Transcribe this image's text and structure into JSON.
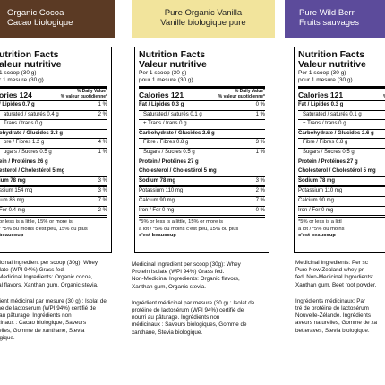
{
  "panels": [
    {
      "header": [
        "Organic Cocoa",
        "Cacao biologique"
      ],
      "facts": {
        "title": [
          "utrition Facts",
          "aleur nutritive"
        ],
        "serving": [
          "1 scoop (30 g)",
          "r 1 mesure (30 g)"
        ],
        "calories": "ories 124",
        "dv": [
          "% Daily Value*",
          "% valeur quotidienne*"
        ],
        "rows": [
          [
            "/ Lipides 0.7 g",
            "1 %"
          ],
          [
            "aturated / saturés 0.4 g",
            "2 %"
          ],
          [
            "Trans / trans 0 g"
          ],
          [
            "ohydrate / Glucides 3.3 g"
          ],
          [
            "bre / Fibres 1.2 g",
            "4 %"
          ],
          [
            "ugars / Sucres 0.5 g",
            "1 %"
          ],
          [
            "ein / Protéines 26 g"
          ],
          [
            "esterol / Cholestérol 5 mg"
          ],
          [
            "ium 78 mg",
            "3 %"
          ],
          [
            "ssium 154 mg",
            "3 %"
          ],
          [
            "ium 86 mg",
            "7 %"
          ],
          [
            "Fer 0.4 mg",
            "2 %"
          ]
        ],
        "footnote": [
          "or less is a little, 15% or more is",
          "/ *5% ou moins c'est peu, 15% ou plus",
          "beaucoup"
        ]
      },
      "ingredients": [
        [
          "dicinal Ingredient per scoop (30g): Whey",
          "olate (WPI 94%) Grass fed.",
          "-Medicinal Ingredients: Organic cocoa,",
          "ral flavors, Xanthan gum, Organic stevia."
        ],
        [
          "dient médicinal par mesure (30 g) : Isolat de",
          "ine de lactosérum (WPI 94%) certifié de",
          "i au pâturage. Ingrédients non",
          "icinaux : Cacao biologique, Saveurs",
          "relles, Gomme de xanthane, Stevia",
          "ogique."
        ]
      ]
    },
    {
      "header": [
        "Pure Organic Vanilla",
        "Vanille biologique pure"
      ],
      "facts": {
        "title": [
          "Nutrition Facts",
          "Valeur nutritive"
        ],
        "serving": [
          "Per 1 scoop (30 g)",
          "pour 1 mesure (30 g)"
        ],
        "calories": "Calories 121",
        "dv": [
          "% Daily Value*",
          "% valeur quotidienne*"
        ],
        "rows": [
          [
            "Fat / Lipides 0.3 g",
            "0 %"
          ],
          [
            "Saturated / saturés 0.1 g",
            "1 %"
          ],
          [
            "+ Trans / trans 0 g"
          ],
          [
            "Carbohydrate / Glucides 2.6 g"
          ],
          [
            "Fibre / Fibres 0.8 g",
            "3 %"
          ],
          [
            "Sugars / Sucres 0.5 g",
            "1 %"
          ],
          [
            "Protein / Protéines 27 g"
          ],
          [
            "Cholesterol / Cholestérol 5 mg"
          ],
          [
            "Sodium 78 mg",
            "3 %"
          ],
          [
            "Potassium 110 mg",
            "2 %"
          ],
          [
            "Calcium 90 mg",
            "7 %"
          ],
          [
            "Iron / Fer 0 mg",
            "0 %"
          ]
        ],
        "footnote": [
          "*5% or less is a little, 15% or more is",
          "a lot / *5% ou moins c'est peu, 15% ou plus",
          "c'est beaucoup"
        ]
      },
      "ingredients": [
        [
          "Medicinal Ingredient per scoop (30g): Whey",
          "Protein Isolate (WPI 94%) Grass fed.",
          "Non-Medicinal Ingredients: Organic flavors,",
          "Xanthan gum, Organic stevia."
        ],
        [
          "Ingrédient médicinal par mesure (30 g) : Isolat de",
          "protéine de lactosérum (WPI 94%) certifié de",
          "nourri au pâturage. Ingrédients non",
          "médicinaux : Saveurs biologiques, Gomme de",
          "xanthane, Stevia biologique."
        ]
      ]
    },
    {
      "header": [
        "Pure Wild Berr",
        "Fruits sauvages"
      ],
      "facts": {
        "title": [
          "Nutrition Facts",
          "Valeur nutritive"
        ],
        "serving": [
          "Per 1 scoop (30 g)",
          "pour 1 mesure (30 g)"
        ],
        "calories": "Calories 121",
        "dv": [
          "% Dai",
          "% valeur q"
        ],
        "rows": [
          [
            "Fat / Lipides 0.3 g"
          ],
          [
            "Saturated / saturés 0.1 g"
          ],
          [
            "+ Trans / trans 0 g"
          ],
          [
            "Carbohydrate / Glucides 2.6 g"
          ],
          [
            "Fibre / Fibres 0.8 g"
          ],
          [
            "Sugars / Sucres 0.5 g"
          ],
          [
            "Protein / Protéines 27 g"
          ],
          [
            "Cholesterol / Cholestérol 5 mg"
          ],
          [
            "Sodium 78 mg"
          ],
          [
            "Potassium 110 mg"
          ],
          [
            "Calcium 90 mg"
          ],
          [
            "Iron / Fer 0 mg"
          ]
        ],
        "footnote": [
          "*5% or less is a littl",
          "a lot / *5% ou moins",
          "c'est beaucoup"
        ]
      },
      "ingredients": [
        [
          "Medicinal Ingredients: Per sc",
          "Pure New Zealand whey pr",
          "fed. Non-Medicinal Ingredients:",
          "Xanthan gum, Beet root powder,"
        ],
        [
          "Ingrédients médicinaux: Par",
          "tré de protéine de lactosérum",
          "Nouvelle-Zélande. Ingrédients",
          "aveurs naturelles, Gomme de xa",
          "betteraves, Stevia biologique."
        ]
      ]
    }
  ]
}
